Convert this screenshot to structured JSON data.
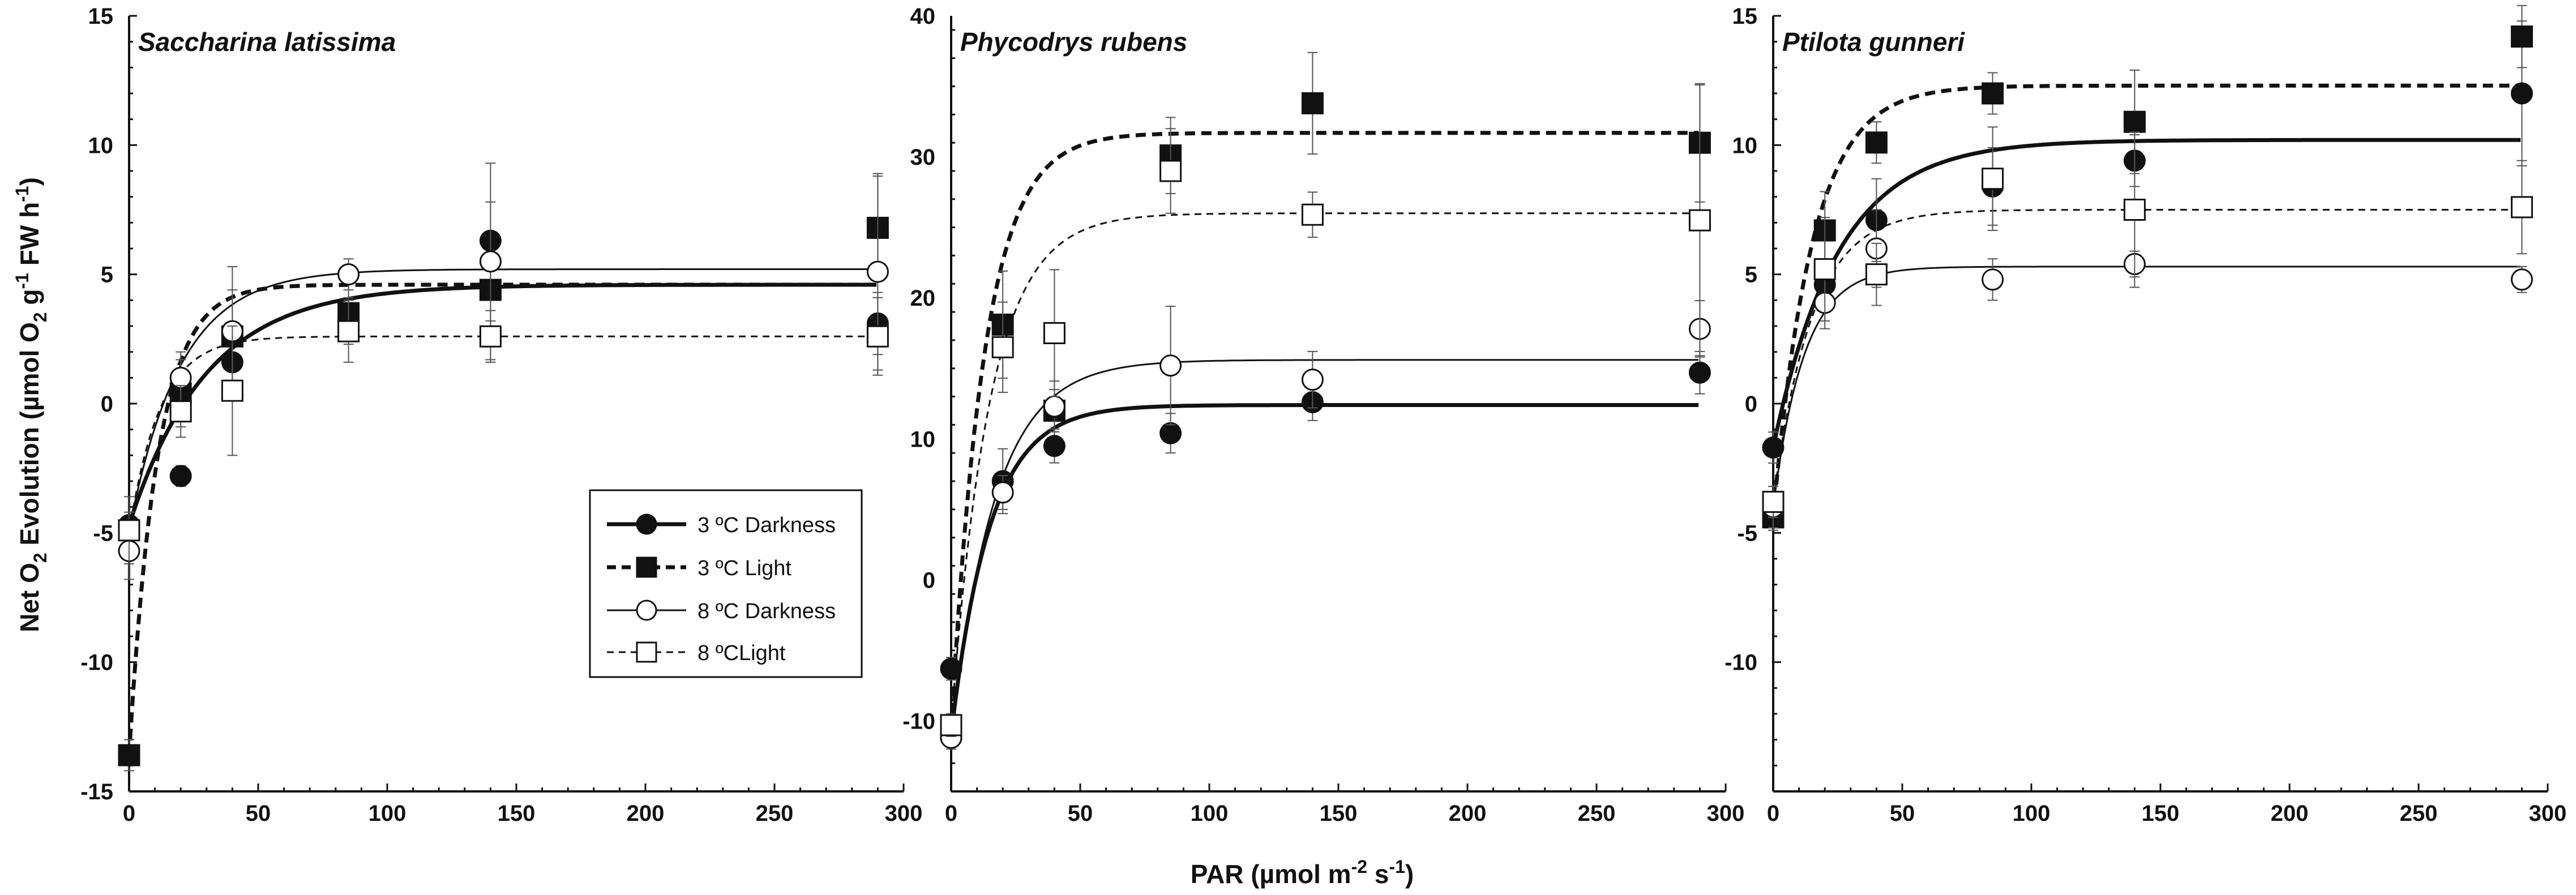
{
  "chart_data": [
    {
      "type": "scatter",
      "title": "Saccharina latissima",
      "xlim": [
        0,
        300
      ],
      "ylim": [
        -15,
        15
      ],
      "xticks": [
        0,
        50,
        100,
        150,
        200,
        250,
        300
      ],
      "yticks": [
        -15,
        -10,
        -5,
        0,
        5,
        10,
        15
      ],
      "series": [
        {
          "name": "3 ºC Darkness",
          "marker": "filled-circle",
          "line": "thick-solid",
          "x": [
            0,
            20,
            40,
            85,
            140,
            290
          ],
          "y": [
            -4.7,
            -2.8,
            1.6,
            3.3,
            6.3,
            3.1
          ],
          "err": [
            0.5,
            0.4,
            0.8,
            0.8,
            1.5,
            1.2
          ],
          "fit": {
            "pmax": 4.6,
            "rd": -4.7,
            "k": 30
          }
        },
        {
          "name": "3 ºC Light",
          "marker": "filled-square",
          "line": "thick-dashed",
          "x": [
            0,
            20,
            40,
            85,
            140,
            290
          ],
          "y": [
            -13.6,
            0.4,
            2.6,
            3.5,
            4.4,
            6.8
          ],
          "err": [
            0.6,
            1.3,
            1.8,
            1.2,
            1.2,
            2.0
          ],
          "fit": {
            "pmax": 4.6,
            "rd": -13.6,
            "k": 11
          }
        },
        {
          "name": "8 ºC Darkness",
          "marker": "open-circle",
          "line": "thin-solid",
          "x": [
            0,
            20,
            40,
            85,
            140,
            290
          ],
          "y": [
            -5.7,
            1.0,
            2.8,
            5.0,
            5.5,
            5.1
          ],
          "err": [
            1.1,
            1.0,
            2.5,
            0.6,
            3.8,
            3.8
          ],
          "fit": {
            "pmax": 5.2,
            "rd": -4.9,
            "k": 20
          }
        },
        {
          "name": "8 ºCLight",
          "marker": "open-square",
          "line": "thin-dashed",
          "x": [
            0,
            20,
            40,
            85,
            140,
            290
          ],
          "y": [
            -4.9,
            -0.3,
            0.5,
            2.8,
            2.6,
            2.6
          ],
          "err": [
            1.3,
            1.0,
            2.5,
            1.2,
            1.0,
            1.5
          ],
          "fit": {
            "pmax": 2.6,
            "rd": -5.0,
            "k": 12
          }
        }
      ]
    },
    {
      "type": "scatter",
      "title": "Phycodrys rubens",
      "xlim": [
        0,
        300
      ],
      "ylim": [
        -15,
        40
      ],
      "xticks": [
        0,
        50,
        100,
        150,
        200,
        250,
        300
      ],
      "yticks": [
        -10,
        0,
        10,
        20,
        30,
        40
      ],
      "series": [
        {
          "name": "3 ºC Darkness",
          "marker": "filled-circle",
          "line": "thick-solid",
          "x": [
            0,
            20,
            40,
            85,
            140,
            290
          ],
          "y": [
            -6.3,
            7.0,
            9.5,
            10.4,
            12.6,
            14.7
          ],
          "err": [
            0.8,
            2.3,
            1.2,
            1.4,
            1.3,
            1.5
          ],
          "fit": {
            "pmax": 12.4,
            "rd": -11.0,
            "k": 15
          }
        },
        {
          "name": "3 ºC Light",
          "marker": "filled-square",
          "line": "thick-dashed",
          "x": [
            0,
            20,
            40,
            85,
            140,
            290
          ],
          "y": [
            -10.6,
            18.1,
            12.0,
            30.1,
            33.8,
            31.0
          ],
          "err": [
            0.6,
            3.8,
            1.5,
            2.7,
            3.6,
            4.2
          ],
          "fit": {
            "pmax": 31.7,
            "rd": -10.6,
            "k": 13
          }
        },
        {
          "name": "8 ºC Darkness",
          "marker": "open-circle",
          "line": "thin-solid",
          "x": [
            0,
            20,
            40,
            85,
            140,
            290
          ],
          "y": [
            -11.2,
            6.2,
            12.3,
            15.2,
            14.2,
            17.8
          ],
          "err": [
            0.8,
            1.2,
            1.8,
            4.2,
            2.0,
            2.0
          ],
          "fit": {
            "pmax": 15.6,
            "rd": -11.2,
            "k": 17
          }
        },
        {
          "name": "8 ºCLight",
          "marker": "open-square",
          "line": "thin-dashed",
          "x": [
            0,
            20,
            40,
            85,
            140,
            290
          ],
          "y": [
            -10.3,
            16.5,
            17.5,
            29.0,
            25.9,
            25.5
          ],
          "err": [
            0.8,
            3.2,
            4.5,
            3.0,
            1.6,
            9.6
          ],
          "fit": {
            "pmax": 26.0,
            "rd": -10.3,
            "k": 15
          }
        }
      ]
    },
    {
      "type": "scatter",
      "title": "Ptilota gunneri",
      "xlim": [
        0,
        300
      ],
      "ylim": [
        -15,
        15
      ],
      "xticks": [
        0,
        50,
        100,
        150,
        200,
        250,
        300
      ],
      "yticks": [
        -10,
        -5,
        0,
        5,
        10,
        15
      ],
      "series": [
        {
          "name": "3 ºC Darkness",
          "marker": "filled-circle",
          "line": "thick-solid",
          "x": [
            0,
            20,
            40,
            85,
            140,
            290
          ],
          "y": [
            -1.7,
            4.6,
            7.1,
            8.4,
            9.4,
            12.0
          ],
          "err": [
            0.6,
            1.0,
            1.6,
            1.5,
            1.0,
            2.8
          ],
          "fit": {
            "pmax": 10.2,
            "rd": -1.7,
            "k": 25
          }
        },
        {
          "name": "3 ºC Light",
          "marker": "filled-square",
          "line": "thick-dashed",
          "x": [
            0,
            20,
            40,
            85,
            140,
            290
          ],
          "y": [
            -4.4,
            6.7,
            10.1,
            12.0,
            10.9,
            14.2
          ],
          "err": [
            0.5,
            1.5,
            0.8,
            0.8,
            2.0,
            1.2
          ],
          "fit": {
            "pmax": 12.3,
            "rd": -4.4,
            "k": 15
          }
        },
        {
          "name": "8 ºC Darkness",
          "marker": "open-circle",
          "line": "thin-solid",
          "x": [
            0,
            20,
            40,
            85,
            140,
            290
          ],
          "y": [
            -4.0,
            3.9,
            6.0,
            4.8,
            5.4,
            4.8
          ],
          "err": [
            0.8,
            1.0,
            1.5,
            0.8,
            0.5,
            0.5
          ],
          "fit": {
            "pmax": 5.3,
            "rd": -4.0,
            "k": 12
          }
        },
        {
          "name": "8 ºCLight",
          "marker": "open-square",
          "line": "thin-dashed",
          "x": [
            0,
            20,
            40,
            85,
            140,
            290
          ],
          "y": [
            -3.8,
            5.2,
            5.0,
            8.7,
            7.5,
            7.6
          ],
          "err": [
            0.6,
            2.0,
            1.2,
            2.0,
            3.0,
            1.8
          ],
          "fit": {
            "pmax": 7.5,
            "rd": -3.8,
            "k": 15
          }
        }
      ]
    }
  ],
  "axes": {
    "ylabel_parts": [
      "Net O",
      "2",
      " Evolution (µmol O",
      "2",
      " g",
      "-1",
      " FW h",
      "-1",
      ")"
    ],
    "xlabel_parts": [
      "PAR (µmol m",
      "-2",
      " s",
      "-1",
      ")"
    ]
  },
  "legend": {
    "placement": "inside-left-panel-lower-right",
    "items": [
      "3 ºC Darkness",
      "3 ºC Light",
      "8 ºC Darkness",
      "8 ºCLight"
    ]
  }
}
